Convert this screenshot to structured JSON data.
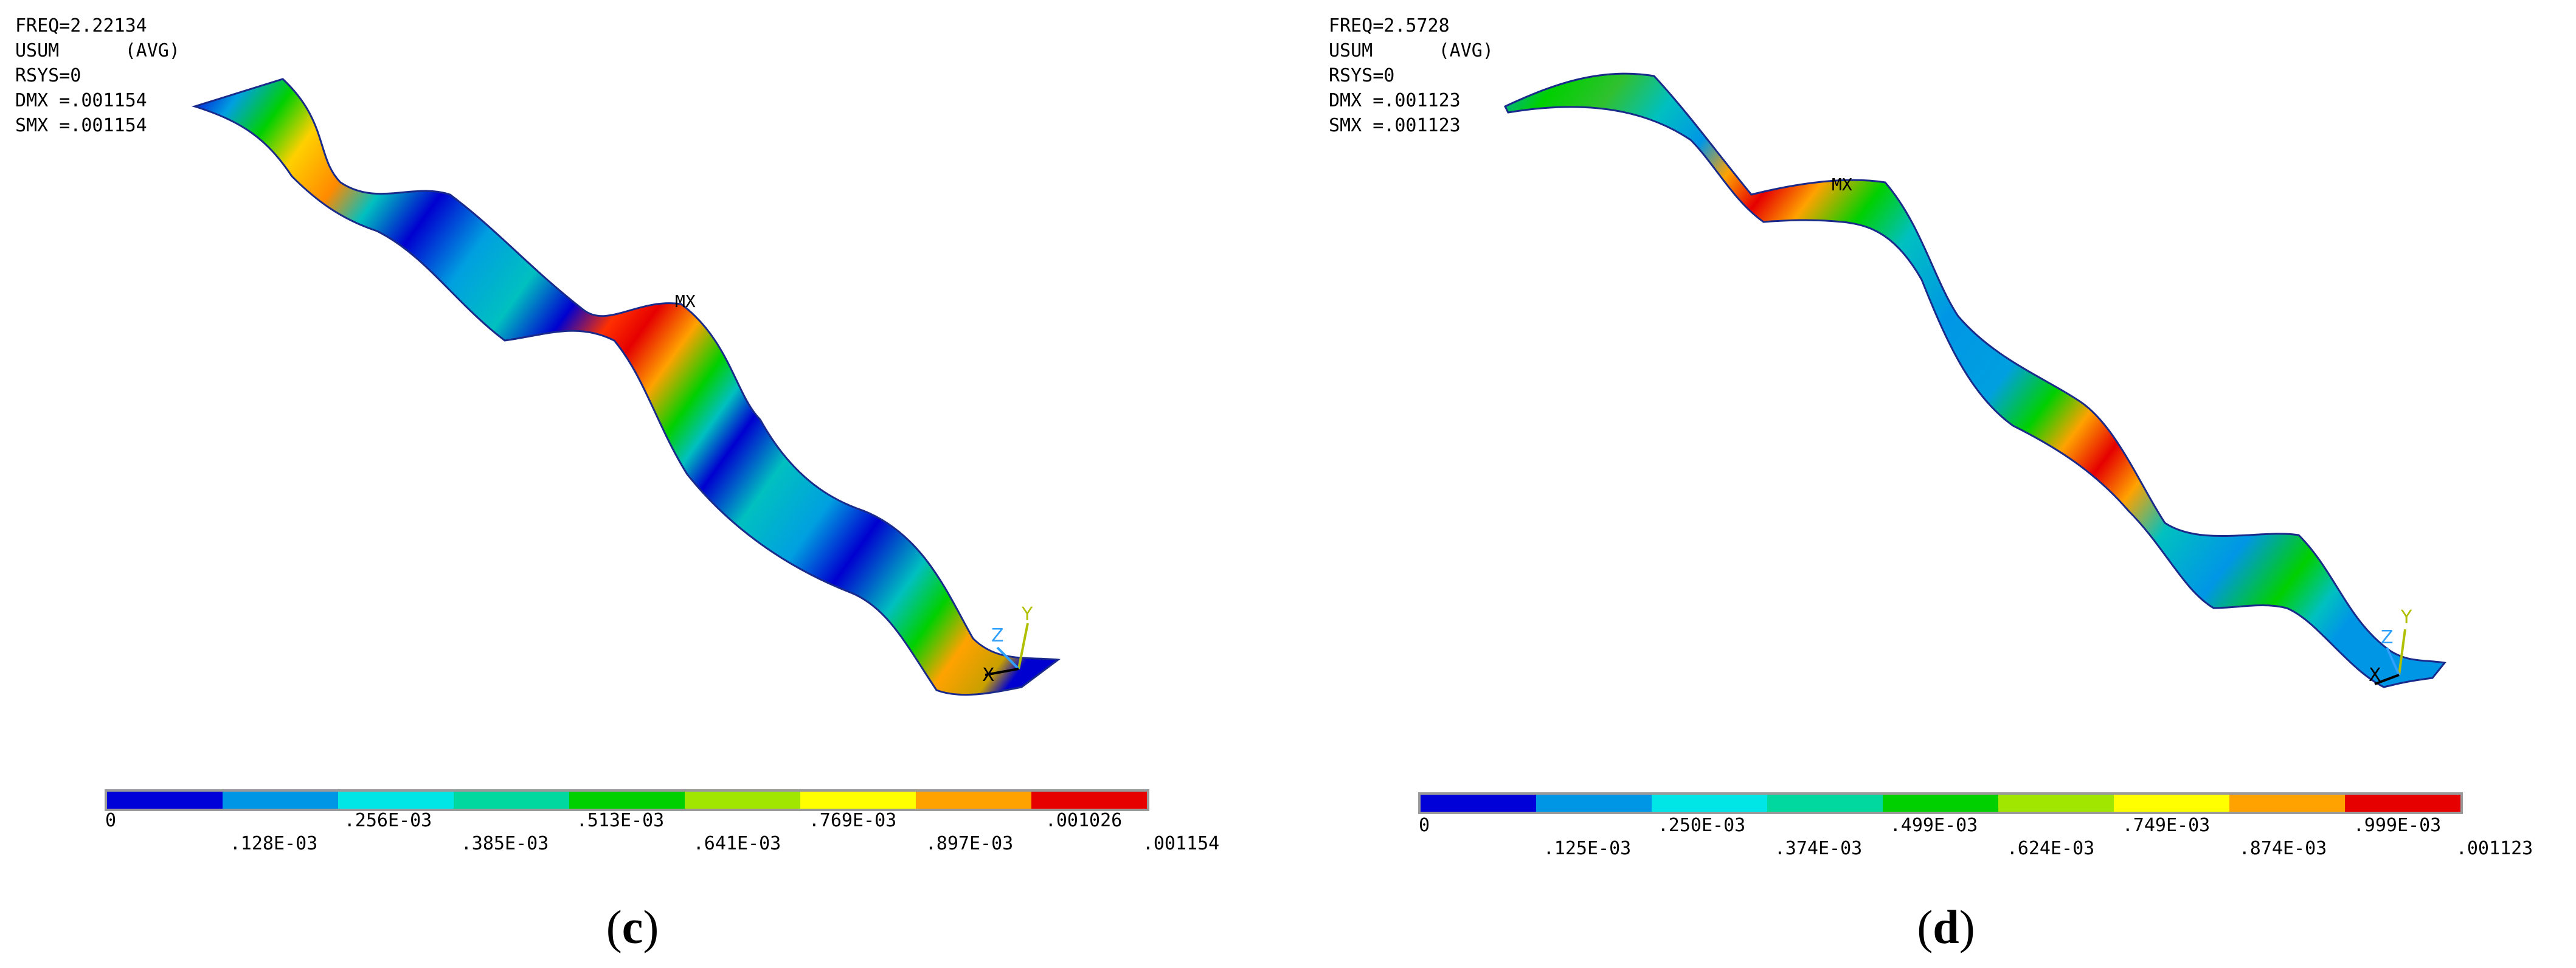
{
  "palette": [
    "#0000d8",
    "#0096e6",
    "#00e6e6",
    "#00d8a0",
    "#00d000",
    "#a0e600",
    "#ffff00",
    "#ffa200",
    "#e60000"
  ],
  "panels": [
    {
      "info": {
        "freq": "FREQ=2.22134",
        "usum": "USUM      (AVG)",
        "rsys": "RSYS=0",
        "dmx": "DMX =.001154",
        "smx": "SMX =.001154"
      },
      "mx_label": "MX",
      "axis_labels": {
        "y": "Y",
        "z": "Z",
        "x": "X"
      },
      "legend_ticks_top": [
        "0",
        ".256E-03",
        ".513E-03",
        ".769E-03",
        ".001026"
      ],
      "legend_ticks_bottom": [
        ".128E-03",
        ".385E-03",
        ".641E-03",
        ".897E-03",
        ".001154"
      ],
      "caption": {
        "open": "(",
        "letter": "c",
        "close": ")"
      }
    },
    {
      "info": {
        "freq": "FREQ=2.5728",
        "usum": "USUM      (AVG)",
        "rsys": "RSYS=0",
        "dmx": "DMX =.001123",
        "smx": "SMX =.001123"
      },
      "mx_label": "MX",
      "axis_labels": {
        "y": "Y",
        "z": "Z",
        "x": "X"
      },
      "legend_ticks_top": [
        "0",
        ".250E-03",
        ".499E-03",
        ".749E-03",
        ".999E-03"
      ],
      "legend_ticks_bottom": [
        ".125E-03",
        ".374E-03",
        ".624E-03",
        ".874E-03",
        ".001123"
      ],
      "caption": {
        "open": "(",
        "letter": "d",
        "close": ")"
      }
    }
  ]
}
